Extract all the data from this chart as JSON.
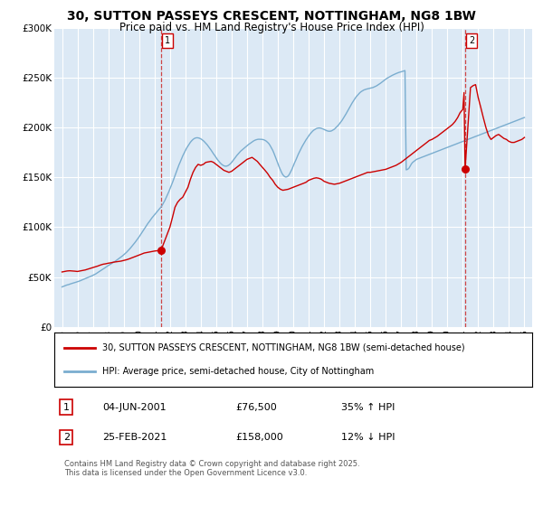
{
  "title_line1": "30, SUTTON PASSEYS CRESCENT, NOTTINGHAM, NG8 1BW",
  "title_line2": "Price paid vs. HM Land Registry's House Price Index (HPI)",
  "title_fontsize": 10,
  "subtitle_fontsize": 8.5,
  "ylim": [
    0,
    300000
  ],
  "yticks": [
    0,
    50000,
    100000,
    150000,
    200000,
    250000,
    300000
  ],
  "ytick_labels": [
    "£0",
    "£50K",
    "£100K",
    "£150K",
    "£200K",
    "£250K",
    "£300K"
  ],
  "xlim_start": 1994.5,
  "xlim_end": 2025.5,
  "sale_color": "#cc0000",
  "hpi_color": "#7aadcf",
  "vline_color": "#cc3333",
  "background_color": "#dce9f5",
  "grid_color": "#ffffff",
  "legend_entries": [
    "30, SUTTON PASSEYS CRESCENT, NOTTINGHAM, NG8 1BW (semi-detached house)",
    "HPI: Average price, semi-detached house, City of Nottingham"
  ],
  "sale1_date": 2001.42,
  "sale1_price": 76500,
  "sale1_label": "1",
  "sale2_date": 2021.15,
  "sale2_price": 158000,
  "sale2_label": "2",
  "annotation1": [
    "1",
    "04-JUN-2001",
    "£76,500",
    "35% ↑ HPI"
  ],
  "annotation2": [
    "2",
    "25-FEB-2021",
    "£158,000",
    "12% ↓ HPI"
  ],
  "footer": "Contains HM Land Registry data © Crown copyright and database right 2025.\nThis data is licensed under the Open Government Licence v3.0.",
  "hpi_years": [
    1995.0,
    1995.08,
    1995.17,
    1995.25,
    1995.33,
    1995.42,
    1995.5,
    1995.58,
    1995.67,
    1995.75,
    1995.83,
    1995.92,
    1996.0,
    1996.08,
    1996.17,
    1996.25,
    1996.33,
    1996.42,
    1996.5,
    1996.58,
    1996.67,
    1996.75,
    1996.83,
    1996.92,
    1997.0,
    1997.08,
    1997.17,
    1997.25,
    1997.33,
    1997.42,
    1997.5,
    1997.58,
    1997.67,
    1997.75,
    1997.83,
    1997.92,
    1998.0,
    1998.08,
    1998.17,
    1998.25,
    1998.33,
    1998.42,
    1998.5,
    1998.58,
    1998.67,
    1998.75,
    1998.83,
    1998.92,
    1999.0,
    1999.08,
    1999.17,
    1999.25,
    1999.33,
    1999.42,
    1999.5,
    1999.58,
    1999.67,
    1999.75,
    1999.83,
    1999.92,
    2000.0,
    2000.08,
    2000.17,
    2000.25,
    2000.33,
    2000.42,
    2000.5,
    2000.58,
    2000.67,
    2000.75,
    2000.83,
    2000.92,
    2001.0,
    2001.08,
    2001.17,
    2001.25,
    2001.33,
    2001.42,
    2001.5,
    2001.58,
    2001.67,
    2001.75,
    2001.83,
    2001.92,
    2002.0,
    2002.08,
    2002.17,
    2002.25,
    2002.33,
    2002.42,
    2002.5,
    2002.58,
    2002.67,
    2002.75,
    2002.83,
    2002.92,
    2003.0,
    2003.08,
    2003.17,
    2003.25,
    2003.33,
    2003.42,
    2003.5,
    2003.58,
    2003.67,
    2003.75,
    2003.83,
    2003.92,
    2004.0,
    2004.08,
    2004.17,
    2004.25,
    2004.33,
    2004.42,
    2004.5,
    2004.58,
    2004.67,
    2004.75,
    2004.83,
    2004.92,
    2005.0,
    2005.08,
    2005.17,
    2005.25,
    2005.33,
    2005.42,
    2005.5,
    2005.58,
    2005.67,
    2005.75,
    2005.83,
    2005.92,
    2006.0,
    2006.08,
    2006.17,
    2006.25,
    2006.33,
    2006.42,
    2006.5,
    2006.58,
    2006.67,
    2006.75,
    2006.83,
    2006.92,
    2007.0,
    2007.08,
    2007.17,
    2007.25,
    2007.33,
    2007.42,
    2007.5,
    2007.58,
    2007.67,
    2007.75,
    2007.83,
    2007.92,
    2008.0,
    2008.08,
    2008.17,
    2008.25,
    2008.33,
    2008.42,
    2008.5,
    2008.58,
    2008.67,
    2008.75,
    2008.83,
    2008.92,
    2009.0,
    2009.08,
    2009.17,
    2009.25,
    2009.33,
    2009.42,
    2009.5,
    2009.58,
    2009.67,
    2009.75,
    2009.83,
    2009.92,
    2010.0,
    2010.08,
    2010.17,
    2010.25,
    2010.33,
    2010.42,
    2010.5,
    2010.58,
    2010.67,
    2010.75,
    2010.83,
    2010.92,
    2011.0,
    2011.08,
    2011.17,
    2011.25,
    2011.33,
    2011.42,
    2011.5,
    2011.58,
    2011.67,
    2011.75,
    2011.83,
    2011.92,
    2012.0,
    2012.08,
    2012.17,
    2012.25,
    2012.33,
    2012.42,
    2012.5,
    2012.58,
    2012.67,
    2012.75,
    2012.83,
    2012.92,
    2013.0,
    2013.08,
    2013.17,
    2013.25,
    2013.33,
    2013.42,
    2013.5,
    2013.58,
    2013.67,
    2013.75,
    2013.83,
    2013.92,
    2014.0,
    2014.08,
    2014.17,
    2014.25,
    2014.33,
    2014.42,
    2014.5,
    2014.58,
    2014.67,
    2014.75,
    2014.83,
    2014.92,
    2015.0,
    2015.08,
    2015.17,
    2015.25,
    2015.33,
    2015.42,
    2015.5,
    2015.58,
    2015.67,
    2015.75,
    2015.83,
    2015.92,
    2016.0,
    2016.08,
    2016.17,
    2016.25,
    2016.33,
    2016.42,
    2016.5,
    2016.58,
    2016.67,
    2016.75,
    2016.83,
    2016.92,
    2017.0,
    2017.08,
    2017.17,
    2017.25,
    2017.33,
    2017.42,
    2017.5,
    2017.58,
    2017.67,
    2017.75,
    2017.83,
    2017.92,
    2018.0,
    2018.08,
    2018.17,
    2018.25,
    2018.33,
    2018.42,
    2018.5,
    2018.58,
    2018.67,
    2018.75,
    2018.83,
    2018.92,
    2019.0,
    2019.08,
    2019.17,
    2019.25,
    2019.33,
    2019.42,
    2019.5,
    2019.58,
    2019.67,
    2019.75,
    2019.83,
    2019.92,
    2020.0,
    2020.08,
    2020.17,
    2020.25,
    2020.33,
    2020.42,
    2020.5,
    2020.58,
    2020.67,
    2020.75,
    2020.83,
    2020.92,
    2021.0,
    2021.08,
    2021.17,
    2021.25,
    2021.33,
    2021.42,
    2021.5,
    2021.58,
    2021.67,
    2021.75,
    2021.83,
    2021.92,
    2022.0,
    2022.08,
    2022.17,
    2022.25,
    2022.33,
    2022.42,
    2022.5,
    2022.58,
    2022.67,
    2022.75,
    2022.83,
    2022.92,
    2023.0,
    2023.08,
    2023.17,
    2023.25,
    2023.33,
    2023.42,
    2023.5,
    2023.58,
    2023.67,
    2023.75,
    2023.83,
    2023.92,
    2024.0,
    2024.08,
    2024.17,
    2024.25,
    2024.33,
    2024.42,
    2024.5,
    2024.58,
    2024.67,
    2024.75,
    2024.83,
    2024.92,
    2025.0
  ],
  "hpi_values": [
    40000,
    40500,
    41000,
    41500,
    42000,
    42300,
    42800,
    43200,
    43600,
    44000,
    44400,
    44800,
    45200,
    45600,
    46100,
    46600,
    47200,
    47800,
    48300,
    48900,
    49400,
    49900,
    50400,
    51000,
    51600,
    52200,
    52900,
    53700,
    54500,
    55300,
    56100,
    57000,
    57900,
    58800,
    59700,
    60600,
    61400,
    62200,
    63000,
    63800,
    64600,
    65400,
    66300,
    67200,
    68100,
    69100,
    70100,
    71100,
    72200,
    73300,
    74500,
    75800,
    77200,
    78600,
    80100,
    81600,
    83200,
    84900,
    86600,
    88400,
    90200,
    92100,
    94100,
    96100,
    98100,
    100100,
    102000,
    103900,
    105700,
    107500,
    109200,
    110900,
    112500,
    114000,
    115500,
    117000,
    118500,
    120100,
    122000,
    124200,
    126700,
    129400,
    132200,
    135200,
    138300,
    141600,
    144900,
    148300,
    151800,
    155300,
    158800,
    162200,
    165400,
    168500,
    171400,
    174200,
    176800,
    179200,
    181400,
    183400,
    185200,
    186800,
    188000,
    188900,
    189500,
    189700,
    189600,
    189200,
    188600,
    187800,
    186700,
    185500,
    184100,
    182600,
    180900,
    179200,
    177300,
    175400,
    173500,
    171600,
    169700,
    167900,
    166200,
    164700,
    163400,
    162300,
    161600,
    161200,
    161200,
    161600,
    162400,
    163500,
    164900,
    166500,
    168200,
    170000,
    171700,
    173300,
    174800,
    176100,
    177300,
    178400,
    179400,
    180500,
    181600,
    182700,
    183700,
    184700,
    185600,
    186400,
    187100,
    187600,
    188000,
    188200,
    188200,
    188100,
    188000,
    187700,
    187100,
    186300,
    185200,
    183800,
    181900,
    179700,
    177100,
    174200,
    171000,
    167600,
    164100,
    160700,
    157500,
    154700,
    152500,
    151000,
    150300,
    150400,
    151300,
    153000,
    155400,
    158200,
    161200,
    164300,
    167300,
    170300,
    173200,
    176000,
    178600,
    181000,
    183300,
    185500,
    187600,
    189600,
    191500,
    193200,
    194800,
    196200,
    197300,
    198200,
    198900,
    199300,
    199500,
    199400,
    199100,
    198600,
    198000,
    197400,
    196800,
    196400,
    196200,
    196300,
    196700,
    197400,
    198300,
    199500,
    200800,
    202200,
    203700,
    205400,
    207200,
    209200,
    211300,
    213500,
    215700,
    218000,
    220300,
    222600,
    224800,
    226900,
    228900,
    230700,
    232300,
    233800,
    235000,
    236100,
    236900,
    237600,
    238100,
    238500,
    238800,
    239100,
    239400,
    239700,
    240100,
    240600,
    241200,
    241900,
    242700,
    243600,
    244500,
    245500,
    246500,
    247500,
    248400,
    249300,
    250100,
    250900,
    251600,
    252300,
    252900,
    253500,
    254100,
    254600,
    255100,
    255500,
    255900,
    256300,
    256700,
    257100,
    157500,
    158000,
    159000,
    161000,
    163500,
    165000,
    166000,
    167000,
    168000,
    168500,
    169000,
    169500,
    170000,
    170500,
    171000,
    171500,
    172000,
    172500,
    173000,
    173500,
    174000,
    174500,
    175000,
    175500,
    176000,
    176500,
    177000,
    177500,
    178000,
    178500,
    179000,
    179500,
    180000,
    180500,
    181000,
    181500,
    182000,
    182500,
    183000,
    183500,
    184000,
    184500,
    185000,
    185500,
    186000,
    186500,
    187000,
    187500,
    188000,
    188500,
    189000,
    189500,
    190000,
    190500,
    191000,
    191500,
    192000,
    192500,
    193000,
    193500,
    194000,
    194500,
    195000,
    195500,
    196000,
    196500,
    197000,
    197500,
    198000,
    198500,
    199000,
    199500,
    200000,
    200500,
    201000,
    201500,
    202000,
    202500,
    203000,
    203500,
    204000,
    204500,
    205000,
    205500,
    206000,
    206500,
    207000,
    207500,
    208000,
    208500,
    209000,
    209500,
    210000
  ],
  "price_years": [
    1995.0,
    1995.17,
    1995.33,
    1995.5,
    1995.67,
    1995.83,
    1996.0,
    1996.17,
    1996.33,
    1996.5,
    1996.67,
    1996.83,
    1997.0,
    1997.17,
    1997.33,
    1997.5,
    1997.67,
    1997.83,
    1998.0,
    1998.17,
    1998.33,
    1998.5,
    1998.67,
    1998.83,
    1999.0,
    1999.17,
    1999.33,
    1999.5,
    1999.67,
    1999.83,
    2000.0,
    2000.17,
    2000.33,
    2000.5,
    2000.67,
    2000.83,
    2001.0,
    2001.17,
    2001.33,
    2001.42,
    2002.0,
    2002.17,
    2002.33,
    2002.5,
    2002.67,
    2002.83,
    2003.0,
    2003.17,
    2003.33,
    2003.5,
    2003.67,
    2003.83,
    2004.0,
    2004.17,
    2004.33,
    2004.5,
    2004.67,
    2004.83,
    2005.0,
    2005.17,
    2005.33,
    2005.5,
    2005.67,
    2005.83,
    2006.0,
    2006.17,
    2006.33,
    2006.5,
    2006.67,
    2006.83,
    2007.0,
    2007.17,
    2007.33,
    2007.5,
    2007.67,
    2007.83,
    2008.0,
    2008.17,
    2008.33,
    2008.5,
    2008.67,
    2008.83,
    2009.0,
    2009.17,
    2009.33,
    2009.5,
    2009.67,
    2009.83,
    2010.0,
    2010.17,
    2010.33,
    2010.5,
    2010.67,
    2010.83,
    2011.0,
    2011.17,
    2011.33,
    2011.5,
    2011.67,
    2011.83,
    2012.0,
    2012.17,
    2012.33,
    2012.5,
    2012.67,
    2012.83,
    2013.0,
    2013.17,
    2013.33,
    2013.5,
    2013.67,
    2013.83,
    2014.0,
    2014.17,
    2014.33,
    2014.5,
    2014.67,
    2014.83,
    2015.0,
    2015.17,
    2015.33,
    2015.5,
    2015.67,
    2015.83,
    2016.0,
    2016.17,
    2016.33,
    2016.5,
    2016.67,
    2016.83,
    2017.0,
    2017.17,
    2017.33,
    2017.5,
    2017.67,
    2017.83,
    2018.0,
    2018.17,
    2018.33,
    2018.5,
    2018.67,
    2018.83,
    2019.0,
    2019.17,
    2019.33,
    2019.5,
    2019.67,
    2019.83,
    2020.0,
    2020.17,
    2020.33,
    2020.5,
    2020.67,
    2020.83,
    2021.0,
    2021.08,
    2021.15,
    2021.5,
    2021.67,
    2021.83,
    2022.0,
    2022.17,
    2022.33,
    2022.5,
    2022.67,
    2022.83,
    2023.0,
    2023.17,
    2023.33,
    2023.5,
    2023.67,
    2023.83,
    2024.0,
    2024.17,
    2024.33,
    2024.5,
    2024.67,
    2024.83,
    2025.0
  ],
  "price_values": [
    55000,
    55500,
    56000,
    56200,
    56000,
    55800,
    55500,
    56000,
    56500,
    57000,
    57800,
    58600,
    59400,
    60200,
    61000,
    62000,
    62800,
    63200,
    63800,
    64200,
    64800,
    65200,
    65500,
    65900,
    66500,
    67200,
    68000,
    69000,
    70000,
    71000,
    72000,
    73000,
    74000,
    74500,
    75000,
    75500,
    76000,
    76300,
    76400,
    76500,
    100000,
    110000,
    120000,
    125000,
    128000,
    130000,
    135000,
    140000,
    148000,
    155000,
    160000,
    163000,
    162000,
    163000,
    165000,
    165500,
    166000,
    165000,
    163000,
    161000,
    159000,
    157000,
    156000,
    155000,
    156000,
    158000,
    160000,
    162000,
    164000,
    166000,
    168000,
    169000,
    170000,
    168000,
    166000,
    163000,
    160000,
    157000,
    154000,
    150000,
    147000,
    143000,
    140000,
    138000,
    137000,
    137500,
    138000,
    139000,
    140000,
    141000,
    142000,
    143000,
    144000,
    145000,
    147000,
    148000,
    149000,
    149500,
    149000,
    148000,
    146000,
    145000,
    144000,
    143500,
    143000,
    143500,
    144000,
    145000,
    146000,
    147000,
    148000,
    149000,
    150000,
    151000,
    152000,
    153000,
    154000,
    155000,
    155000,
    155500,
    156000,
    156500,
    157000,
    157500,
    158000,
    159000,
    160000,
    161000,
    162000,
    163500,
    165000,
    167000,
    169000,
    171000,
    173000,
    175000,
    177000,
    179000,
    181000,
    183000,
    185000,
    187000,
    188000,
    189500,
    191000,
    193000,
    195000,
    197000,
    199000,
    201000,
    203000,
    206000,
    210000,
    215000,
    218000,
    235000,
    158000,
    240000,
    242000,
    243000,
    230000,
    220000,
    210000,
    200000,
    192000,
    188000,
    190000,
    192000,
    193000,
    191000,
    189000,
    188000,
    186000,
    185000,
    185000,
    186000,
    187000,
    188000,
    190000
  ]
}
